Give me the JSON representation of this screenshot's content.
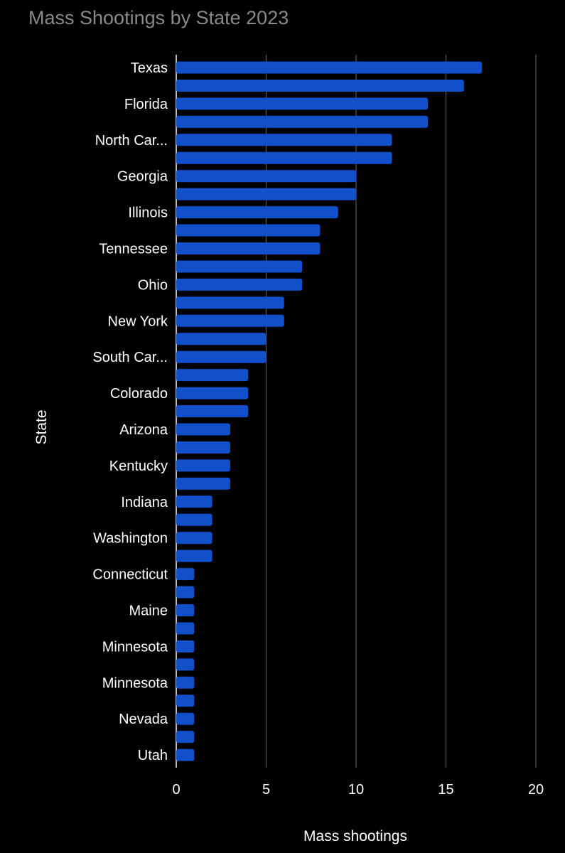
{
  "chart_data": {
    "type": "bar",
    "orientation": "horizontal",
    "title": "Mass Shootings by State 2023",
    "xlabel": "Mass shootings",
    "ylabel": "State",
    "xlim": [
      0,
      20
    ],
    "xticks": [
      0,
      5,
      10,
      15,
      20
    ],
    "grid": true,
    "legend": "none",
    "colors": {
      "bar": "#1150c9",
      "background": "#000000",
      "grid": "#5a5a5a",
      "title": "#8a8a8a",
      "text": "#ffffff"
    },
    "categories": [
      "Texas",
      "",
      "Florida",
      "",
      "North Car...",
      "",
      "Georgia",
      "",
      "Illinois",
      "",
      "Tennessee",
      "",
      "Ohio",
      "",
      "New York",
      "",
      "South Car...",
      "",
      "Colorado",
      "",
      "Arizona",
      "",
      "Kentucky",
      "",
      "Indiana",
      "",
      "Washington",
      "",
      "Connecticut",
      "",
      "Maine",
      "",
      "Minnesota",
      "",
      "Minnesota",
      "",
      "Nevada",
      "",
      "Utah"
    ],
    "values": [
      17,
      16,
      14,
      14,
      12,
      12,
      10,
      10,
      9,
      8,
      8,
      7,
      7,
      6,
      6,
      5,
      5,
      4,
      4,
      4,
      3,
      3,
      3,
      3,
      2,
      2,
      2,
      2,
      1,
      1,
      1,
      1,
      1,
      1,
      1,
      1,
      1,
      1,
      1
    ]
  }
}
